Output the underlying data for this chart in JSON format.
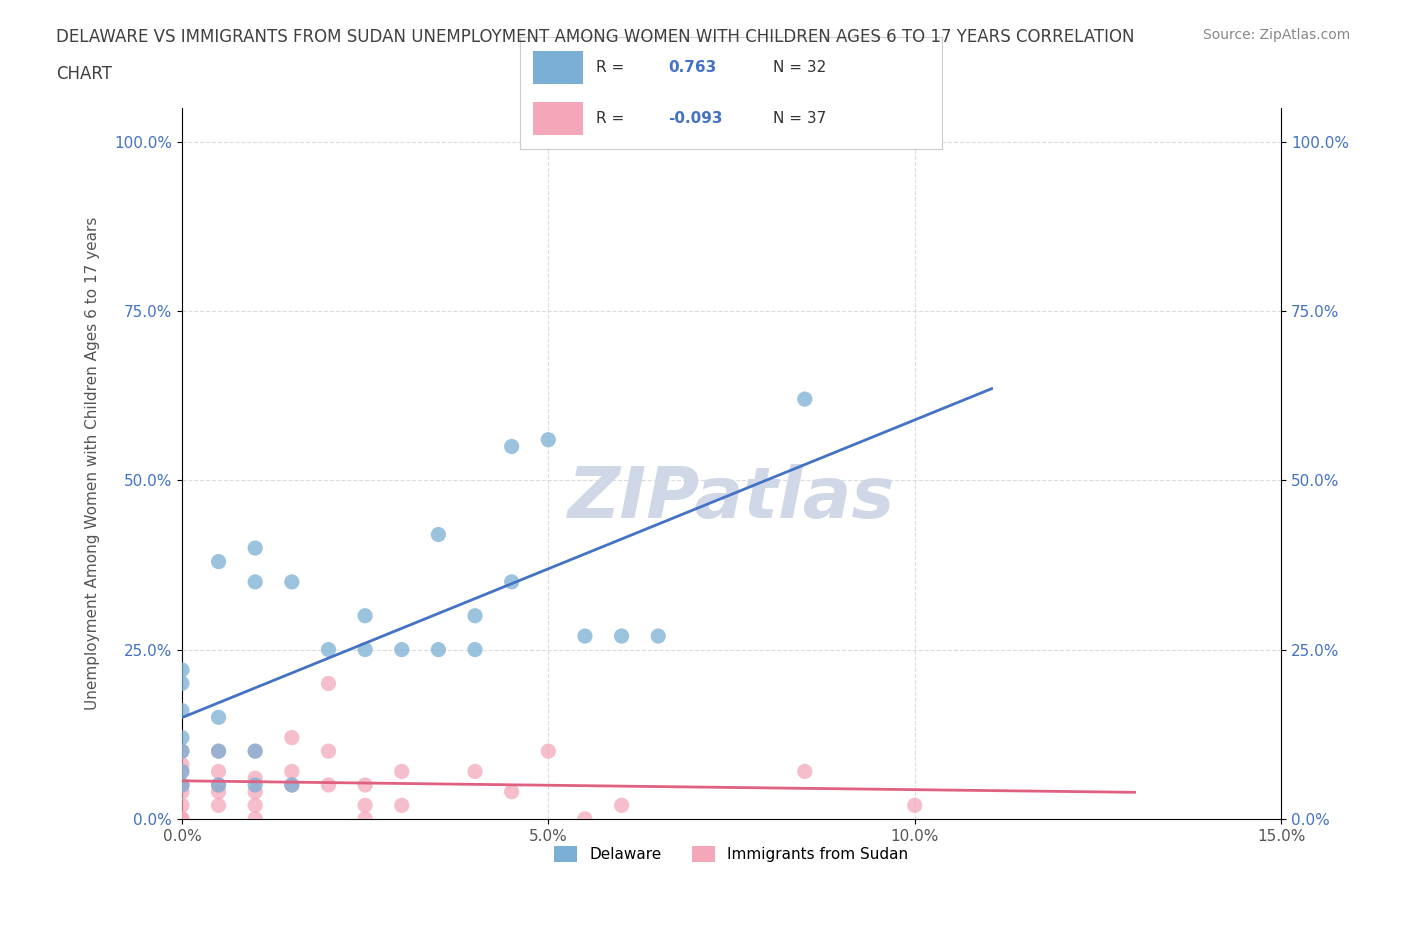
{
  "title_line1": "DELAWARE VS IMMIGRANTS FROM SUDAN UNEMPLOYMENT AMONG WOMEN WITH CHILDREN AGES 6 TO 17 YEARS CORRELATION",
  "title_line2": "CHART",
  "source_text": "Source: ZipAtlas.com",
  "xlabel": "",
  "ylabel": "Unemployment Among Women with Children Ages 6 to 17 years",
  "xlim": [
    0.0,
    0.15
  ],
  "ylim": [
    0.0,
    1.05
  ],
  "xticks": [
    0.0,
    0.05,
    0.1,
    0.15
  ],
  "xticklabels": [
    "0.0%",
    "5.0%",
    "10.0%",
    "15.0%"
  ],
  "yticks": [
    0.0,
    0.25,
    0.5,
    0.75,
    1.0
  ],
  "yticklabels": [
    "0.0%",
    "25.0%",
    "50.0%",
    "75.0%",
    "100.0%"
  ],
  "watermark": "ZIPatlas",
  "legend_r1": "R =  0.763  N = 32",
  "legend_r2": "R = -0.093  N = 37",
  "r_delaware": 0.763,
  "n_delaware": 32,
  "r_sudan": -0.093,
  "n_sudan": 37,
  "color_delaware": "#7bafd4",
  "color_sudan": "#f4a7b9",
  "line_color_delaware": "#4472c4",
  "line_color_sudan": "#e06080",
  "background_color": "#ffffff",
  "grid_color": "#cccccc",
  "title_color": "#404040",
  "watermark_color": "#d0d8e8",
  "delaware_x": [
    0.0,
    0.0,
    0.0,
    0.0,
    0.0,
    0.0,
    0.0,
    0.005,
    0.005,
    0.005,
    0.005,
    0.01,
    0.01,
    0.01,
    0.01,
    0.015,
    0.015,
    0.02,
    0.025,
    0.025,
    0.03,
    0.035,
    0.035,
    0.04,
    0.04,
    0.045,
    0.045,
    0.05,
    0.055,
    0.06,
    0.065,
    0.085
  ],
  "delaware_y": [
    0.05,
    0.07,
    0.1,
    0.12,
    0.16,
    0.2,
    0.22,
    0.05,
    0.1,
    0.15,
    0.38,
    0.05,
    0.1,
    0.35,
    0.4,
    0.05,
    0.35,
    0.25,
    0.25,
    0.3,
    0.25,
    0.25,
    0.42,
    0.25,
    0.3,
    0.35,
    0.55,
    0.56,
    0.27,
    0.27,
    0.27,
    0.62
  ],
  "sudan_x": [
    0.0,
    0.0,
    0.0,
    0.0,
    0.0,
    0.0,
    0.0,
    0.0,
    0.0,
    0.005,
    0.005,
    0.005,
    0.005,
    0.005,
    0.01,
    0.01,
    0.01,
    0.01,
    0.01,
    0.015,
    0.015,
    0.015,
    0.02,
    0.02,
    0.02,
    0.025,
    0.025,
    0.025,
    0.03,
    0.03,
    0.04,
    0.045,
    0.05,
    0.055,
    0.06,
    0.085,
    0.1
  ],
  "sudan_y": [
    0.0,
    0.0,
    0.02,
    0.04,
    0.05,
    0.05,
    0.07,
    0.08,
    0.1,
    0.02,
    0.04,
    0.05,
    0.07,
    0.1,
    0.0,
    0.02,
    0.04,
    0.06,
    0.1,
    0.05,
    0.07,
    0.12,
    0.05,
    0.1,
    0.2,
    0.0,
    0.02,
    0.05,
    0.02,
    0.07,
    0.07,
    0.04,
    0.1,
    0.0,
    0.02,
    0.07,
    0.02
  ]
}
